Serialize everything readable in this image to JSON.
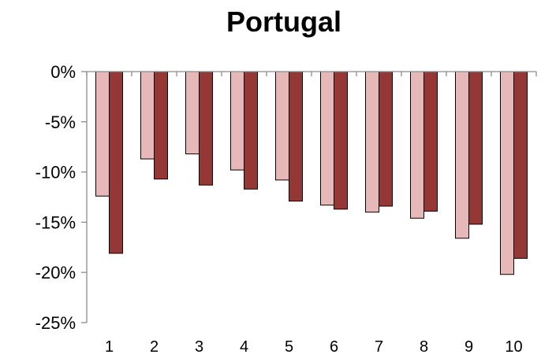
{
  "chart_data": {
    "type": "bar",
    "title": "Portugal",
    "xlabel": "",
    "ylabel": "",
    "categories": [
      "1",
      "2",
      "3",
      "4",
      "5",
      "6",
      "7",
      "8",
      "9",
      "10"
    ],
    "ylim": [
      -25,
      0
    ],
    "yticks": [
      0,
      -5,
      -10,
      -15,
      -20,
      -25
    ],
    "ytick_labels": [
      "0%",
      "-5%",
      "-10%",
      "-15%",
      "-20%",
      "-25%"
    ],
    "grid": false,
    "legend": "none",
    "series": [
      {
        "color": "#e6b9b8",
        "values": [
          -12.4,
          -8.7,
          -8.2,
          -9.8,
          -10.8,
          -13.3,
          -14.0,
          -14.6,
          -16.6,
          -20.2
        ]
      },
      {
        "color": "#953735",
        "values": [
          -18.1,
          -10.7,
          -11.3,
          -11.7,
          -12.9,
          -13.7,
          -13.4,
          -13.9,
          -15.2,
          -18.6
        ]
      }
    ]
  }
}
